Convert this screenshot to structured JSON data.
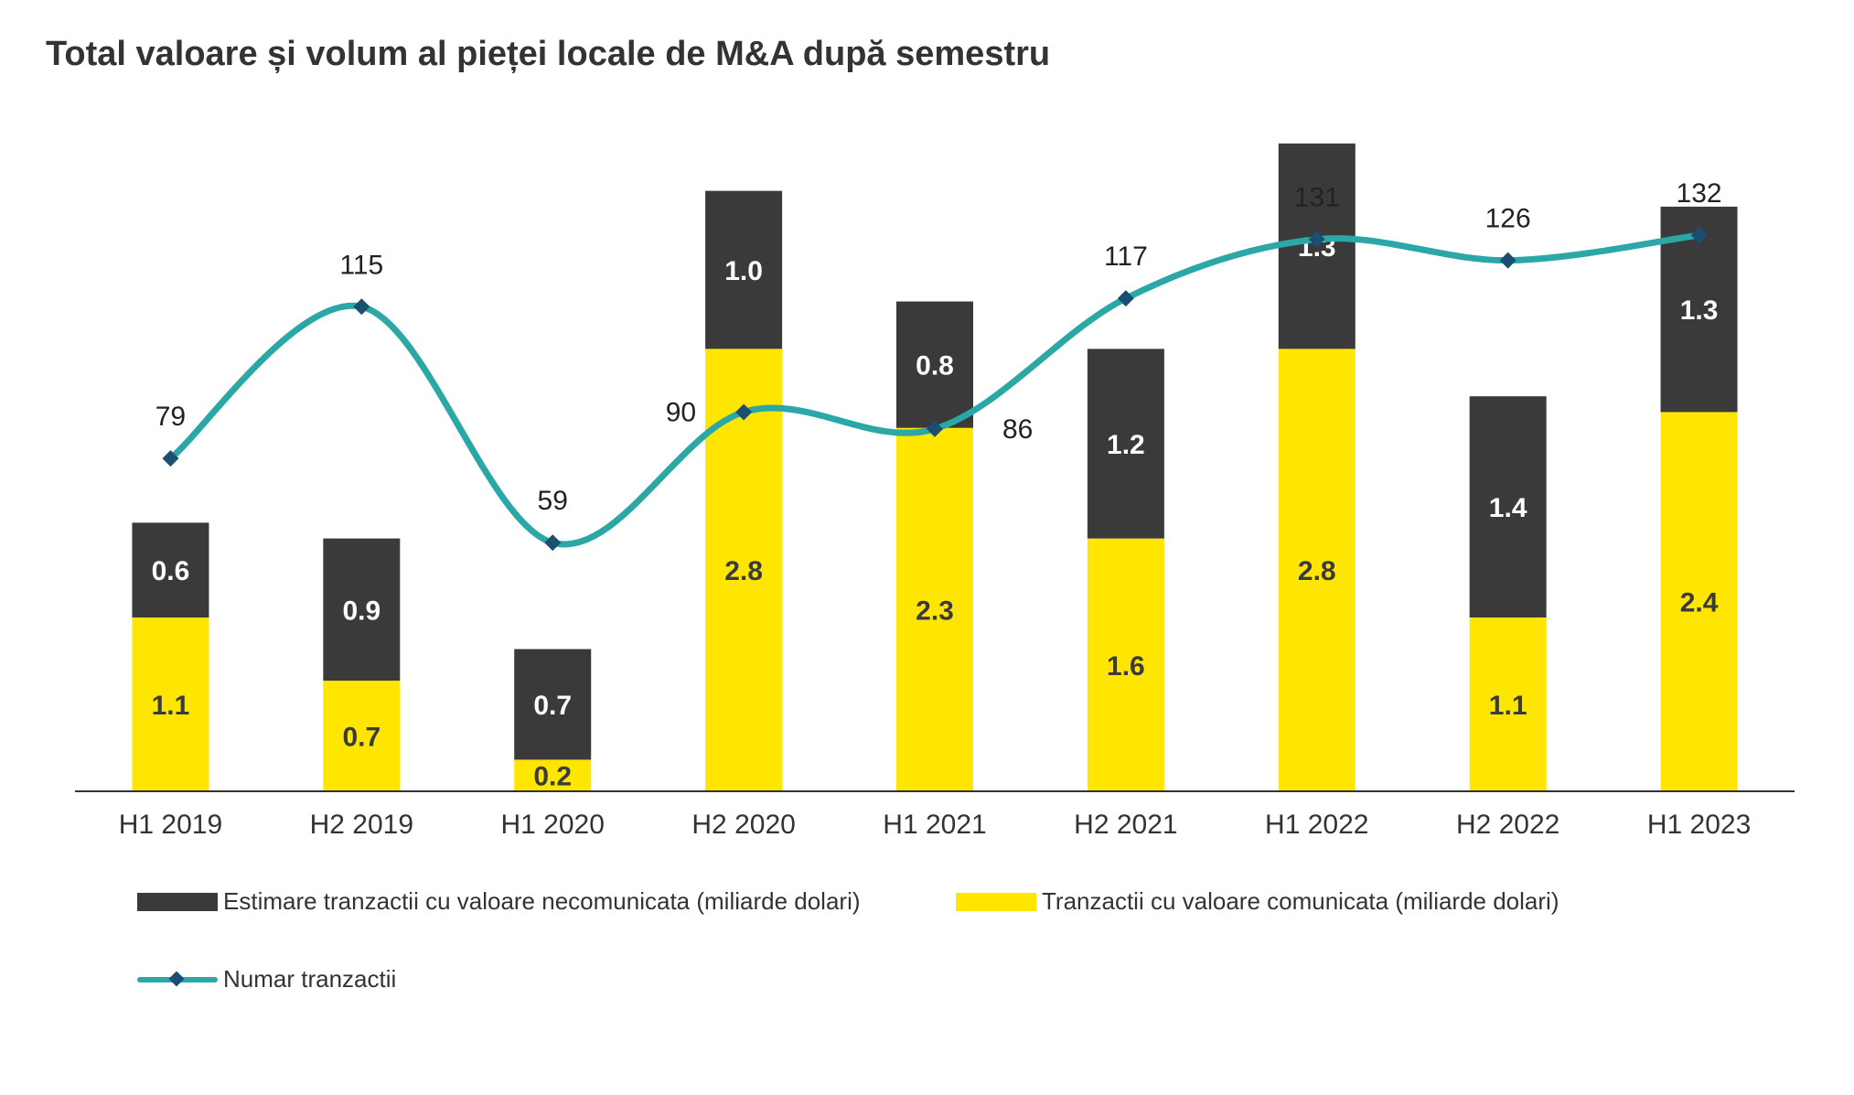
{
  "title": "Total valoare și volum al pieței locale de M&A după semestru",
  "chart_data": {
    "type": "bar",
    "stacked": true,
    "categories": [
      "H1 2019",
      "H2 2019",
      "H1 2020",
      "H2 2020",
      "H1 2021",
      "H2 2021",
      "H1 2022",
      "H2 2022",
      "H1 2023"
    ],
    "series": [
      {
        "name": "Tranzactii cu valoare comunicata (miliarde dolari)",
        "values": [
          1.1,
          0.7,
          0.2,
          2.8,
          2.3,
          1.6,
          2.8,
          1.1,
          2.4
        ],
        "color": "#FFE600",
        "label_color": "#3A3A3A"
      },
      {
        "name": "Estimare tranzactii cu valoare necomunicata (miliarde dolari)",
        "values": [
          0.6,
          0.9,
          0.7,
          1.0,
          0.8,
          1.2,
          1.3,
          1.4,
          1.3
        ],
        "color": "#3A3A3A",
        "label_color": "#FFFFFF"
      }
    ],
    "line_series": {
      "name": "Numar tranzactii",
      "values": [
        79,
        115,
        59,
        90,
        86,
        117,
        131,
        126,
        132
      ],
      "color": "#2BA7A7",
      "marker_color": "#1B4F72"
    },
    "ylim": [
      0,
      4.4
    ],
    "line_ylim": [
      0,
      165
    ],
    "legend_position": "bottom",
    "grid": false
  },
  "legend": {
    "unreported": "Estimare tranzactii cu valoare necomunicata (miliarde dolari)",
    "reported": "Tranzactii cu valoare comunicata (miliarde dolari)",
    "count": "Numar tranzactii"
  }
}
